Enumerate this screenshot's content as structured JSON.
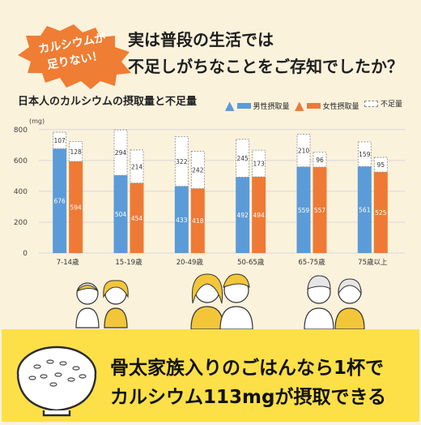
{
  "badge": {
    "line1": "カルシウムが",
    "line2": "足りない！"
  },
  "headline": {
    "line1": "実は普段の生活では",
    "line2": "不足しがちなことをご存知でしたか？"
  },
  "chart_data": {
    "type": "bar",
    "title": "日本人のカルシウムの摂取量と不足量",
    "unit": "(mg)",
    "yticks": [
      0,
      200,
      400,
      600,
      800
    ],
    "ylim": [
      0,
      820
    ],
    "legend": [
      "男性摂取量",
      "女性摂取量",
      "不足量"
    ],
    "categories": [
      "7-14歳",
      "15-19歳",
      "20-49歳",
      "50-65歳",
      "65-75歳",
      "75歳以上"
    ],
    "male_intake": [
      676,
      504,
      433,
      492,
      559,
      561
    ],
    "male_shortage": [
      107,
      294,
      322,
      245,
      210,
      159
    ],
    "female_intake": [
      594,
      454,
      418,
      494,
      557,
      525
    ],
    "female_shortage": [
      128,
      214,
      242,
      173,
      96,
      95
    ],
    "colors": {
      "male": "#5b9bd8",
      "female": "#ee7a36",
      "shortage_border": "#8a8a8a",
      "grid": "#d8d8d8"
    }
  },
  "banner": {
    "line1": "骨太家族入りのごはんなら1杯で",
    "line2": "カルシウム113mgが摂取できる"
  }
}
